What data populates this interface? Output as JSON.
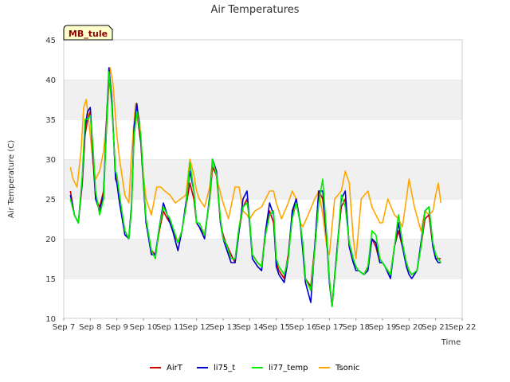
{
  "chart_data": {
    "type": "line",
    "title": "Air Temperatures",
    "xlabel": "Time",
    "ylabel": "Air Temperature (C)",
    "tag": "MB_tule",
    "ylim": [
      10,
      45
    ],
    "xlim": [
      "Sep 7",
      "Sep 22"
    ],
    "yticks": [
      10,
      15,
      20,
      25,
      30,
      35,
      40,
      45
    ],
    "xticks": [
      "Sep 7",
      "Sep 8",
      "Sep 9",
      "Sep 10",
      "Sep 11",
      "Sep 12",
      "Sep 13",
      "Sep 14",
      "Sep 15",
      "Sep 16",
      "Sep 17",
      "Sep 18",
      "Sep 19",
      "Sep 20",
      "Sep 21",
      "Sep 22"
    ],
    "grid": "horizontal bands",
    "legend_position": "bottom",
    "colors": {
      "AirT": "#cc0000",
      "li75_t": "#0000cc",
      "li77_temp": "#00ee00",
      "Tsonic": "#ffa500",
      "band": "#f0f0f0",
      "tag_bg": "#ffffcc"
    },
    "x_unit": "days since Sep 7 00:00",
    "series": [
      {
        "name": "AirT",
        "x": [
          0.25,
          0.4,
          0.55,
          0.7,
          0.8,
          0.9,
          1.0,
          1.1,
          1.2,
          1.35,
          1.5,
          1.6,
          1.7,
          1.8,
          1.95,
          2.0,
          2.1,
          2.3,
          2.45,
          2.55,
          2.65,
          2.75,
          2.9,
          3.0,
          3.1,
          3.3,
          3.45,
          3.6,
          3.75,
          3.9,
          4.0,
          4.1,
          4.3,
          4.45,
          4.6,
          4.75,
          4.9,
          5.0,
          5.1,
          5.3,
          5.5,
          5.6,
          5.75,
          5.9,
          6.0,
          6.1,
          6.3,
          6.45,
          6.6,
          6.75,
          6.9,
          7.0,
          7.1,
          7.3,
          7.45,
          7.6,
          7.75,
          7.9,
          8.0,
          8.1,
          8.3,
          8.45,
          8.6,
          8.75,
          8.9,
          9.0,
          9.1,
          9.3,
          9.45,
          9.6,
          9.75,
          9.9,
          10.0,
          10.1,
          10.3,
          10.45,
          10.6,
          10.75,
          10.9,
          11.0,
          11.1,
          11.3,
          11.45,
          11.6,
          11.75,
          11.9,
          12.0,
          12.1,
          12.3,
          12.45,
          12.6,
          12.75,
          12.9,
          13.0,
          13.1,
          13.3,
          13.45,
          13.6,
          13.75,
          13.9,
          14.0,
          14.1,
          14.2
        ],
        "y": [
          26,
          23,
          22,
          27,
          33,
          35,
          36,
          30,
          25,
          24,
          26,
          33,
          40,
          38,
          28,
          27,
          25,
          21,
          20,
          24,
          33,
          36,
          32,
          27,
          22,
          18.5,
          18,
          21,
          23.5,
          22.5,
          22,
          21,
          19.5,
          21,
          24,
          27,
          25,
          22,
          21.5,
          20.5,
          25,
          29,
          28,
          22,
          20.5,
          19.5,
          18,
          17,
          21,
          24,
          25,
          22,
          18,
          17,
          16.5,
          21,
          23.5,
          22,
          17,
          16,
          15,
          18,
          23,
          25,
          22,
          19,
          15,
          14,
          19,
          26,
          25,
          20,
          15,
          11.5,
          19,
          24,
          25,
          19,
          17,
          16.5,
          16,
          15.5,
          16.5,
          20,
          19,
          17,
          17,
          16.5,
          15.5,
          19,
          21,
          19,
          17,
          16,
          15.5,
          16,
          19,
          22.5,
          23,
          19,
          17.5,
          17.5,
          17.5
        ]
      },
      {
        "name": "li75_t",
        "x": [
          0.25,
          0.4,
          0.55,
          0.7,
          0.8,
          0.9,
          1.0,
          1.1,
          1.2,
          1.35,
          1.5,
          1.6,
          1.7,
          1.8,
          1.95,
          2.0,
          2.1,
          2.3,
          2.45,
          2.55,
          2.65,
          2.75,
          2.9,
          3.0,
          3.1,
          3.3,
          3.45,
          3.6,
          3.75,
          3.9,
          4.0,
          4.1,
          4.3,
          4.45,
          4.6,
          4.75,
          4.9,
          5.0,
          5.1,
          5.3,
          5.5,
          5.6,
          5.75,
          5.9,
          6.0,
          6.1,
          6.3,
          6.45,
          6.6,
          6.75,
          6.9,
          7.0,
          7.1,
          7.3,
          7.45,
          7.6,
          7.75,
          7.9,
          8.0,
          8.1,
          8.3,
          8.45,
          8.6,
          8.75,
          8.9,
          9.0,
          9.1,
          9.3,
          9.45,
          9.6,
          9.75,
          9.9,
          10.0,
          10.1,
          10.3,
          10.45,
          10.6,
          10.75,
          10.9,
          11.0,
          11.1,
          11.3,
          11.45,
          11.6,
          11.75,
          11.9,
          12.0,
          12.1,
          12.3,
          12.45,
          12.6,
          12.75,
          12.9,
          13.0,
          13.1,
          13.3,
          13.45,
          13.6,
          13.75,
          13.9,
          14.0,
          14.1,
          14.2
        ],
        "y": [
          25.5,
          23,
          22,
          27.5,
          34,
          36,
          36.5,
          31,
          25,
          23.5,
          25.5,
          34,
          41.5,
          38,
          27.5,
          27,
          24.5,
          20.5,
          20,
          24,
          34,
          37,
          32.5,
          27,
          22,
          18,
          18,
          21.5,
          24.5,
          23,
          22,
          21,
          18.5,
          21,
          24.5,
          28.5,
          26,
          22,
          21.5,
          20,
          25.5,
          30,
          28.5,
          22,
          20,
          19,
          17,
          17,
          21,
          25,
          26,
          22,
          17.5,
          16.5,
          16,
          21,
          24.5,
          23,
          16.5,
          15.5,
          14.5,
          17.5,
          23.5,
          25,
          22,
          18.5,
          14.5,
          12,
          19,
          26,
          26,
          20,
          14.5,
          11.5,
          19,
          25,
          26,
          19,
          17,
          16,
          16,
          15.5,
          16,
          20,
          19.5,
          17,
          17,
          16.5,
          15,
          19,
          22,
          19,
          16.5,
          15.5,
          15,
          16,
          19.5,
          23.5,
          24,
          19,
          17.5,
          17,
          17
        ]
      },
      {
        "name": "li77_temp",
        "x": [
          0.25,
          0.4,
          0.55,
          0.7,
          0.8,
          0.9,
          1.0,
          1.1,
          1.2,
          1.35,
          1.5,
          1.6,
          1.7,
          1.8,
          1.95,
          2.0,
          2.1,
          2.3,
          2.45,
          2.55,
          2.65,
          2.75,
          2.9,
          3.0,
          3.1,
          3.3,
          3.45,
          3.6,
          3.75,
          3.9,
          4.0,
          4.1,
          4.3,
          4.45,
          4.6,
          4.75,
          4.9,
          5.0,
          5.1,
          5.3,
          5.5,
          5.6,
          5.75,
          5.9,
          6.0,
          6.1,
          6.3,
          6.45,
          6.6,
          6.75,
          6.9,
          7.0,
          7.1,
          7.3,
          7.45,
          7.6,
          7.75,
          7.9,
          8.0,
          8.1,
          8.3,
          8.45,
          8.6,
          8.75,
          8.9,
          9.0,
          9.1,
          9.3,
          9.45,
          9.6,
          9.75,
          9.9,
          10.0,
          10.1,
          10.3,
          10.45,
          10.6,
          10.75,
          10.9,
          11.0,
          11.1,
          11.3,
          11.45,
          11.6,
          11.75,
          11.9,
          12.0,
          12.1,
          12.3,
          12.45,
          12.6,
          12.75,
          12.9,
          13.0,
          13.1,
          13.3,
          13.45,
          13.6,
          13.75,
          13.9,
          14.0,
          14.1,
          14.2
        ],
        "y": [
          25,
          23,
          22,
          28,
          35,
          35,
          35.5,
          31.5,
          26,
          23,
          25,
          33,
          41,
          37,
          28.5,
          28,
          25.5,
          21,
          20,
          23.5,
          33,
          36,
          33,
          27.5,
          22.5,
          18.5,
          17.5,
          21.5,
          24,
          23,
          22.5,
          21.5,
          19.5,
          21,
          24,
          29.5,
          26,
          22,
          22,
          20.5,
          25,
          30,
          28,
          22.5,
          20,
          19.5,
          17.5,
          17.5,
          21.5,
          24,
          24.5,
          22.5,
          18,
          17,
          16.5,
          20.5,
          23,
          23.5,
          17.5,
          16.5,
          15.5,
          17.5,
          22.5,
          24.5,
          22,
          19.5,
          15,
          13.5,
          18.5,
          24.5,
          27.5,
          20.5,
          15,
          11.5,
          18.5,
          25.5,
          24,
          19.5,
          17.5,
          16.5,
          16,
          15.5,
          16.5,
          21,
          20.5,
          17.5,
          17,
          16.5,
          15.5,
          19,
          23,
          19.5,
          17,
          16,
          15.5,
          16,
          19,
          23.5,
          24,
          19.5,
          18,
          17.5,
          17
        ]
      },
      {
        "name": "Tsonic",
        "x": [
          0.25,
          0.35,
          0.5,
          0.65,
          0.75,
          0.85,
          1.0,
          1.1,
          1.2,
          1.35,
          1.5,
          1.6,
          1.75,
          1.85,
          2.0,
          2.1,
          2.3,
          2.45,
          2.55,
          2.7,
          2.85,
          3.0,
          3.1,
          3.3,
          3.5,
          3.65,
          3.8,
          4.0,
          4.2,
          4.4,
          4.6,
          4.75,
          4.9,
          5.0,
          5.1,
          5.3,
          5.5,
          5.6,
          5.8,
          6.0,
          6.2,
          6.45,
          6.6,
          6.75,
          6.9,
          7.0,
          7.2,
          7.45,
          7.6,
          7.75,
          7.9,
          8.0,
          8.2,
          8.45,
          8.6,
          8.75,
          8.9,
          9.0,
          9.2,
          9.45,
          9.6,
          9.75,
          9.9,
          10.0,
          10.2,
          10.45,
          10.6,
          10.75,
          10.9,
          11.0,
          11.2,
          11.45,
          11.6,
          11.75,
          11.9,
          12.0,
          12.2,
          12.45,
          12.6,
          12.75,
          12.9,
          13.0,
          13.2,
          13.45,
          13.6,
          13.75,
          13.9,
          14.0,
          14.1,
          14.2
        ],
        "y": [
          29,
          27.5,
          26.5,
          31,
          36.5,
          37.5,
          33,
          29.5,
          27.5,
          28.5,
          31,
          34.5,
          41.5,
          39.5,
          33,
          30,
          25.5,
          24.5,
          30.5,
          37,
          35,
          28,
          25,
          23,
          26.5,
          26.5,
          26,
          25.5,
          24.5,
          25,
          25.5,
          30,
          28,
          26,
          25,
          24,
          26.5,
          30,
          27,
          24.5,
          22.5,
          26.5,
          26.5,
          23.5,
          23,
          22.5,
          23.5,
          24,
          25,
          26,
          26,
          24.5,
          22.5,
          24.5,
          26,
          25,
          22,
          21.5,
          23,
          25,
          26,
          23,
          19,
          18,
          25,
          26,
          28.5,
          27,
          20,
          17.5,
          25,
          26,
          24,
          23,
          22,
          22,
          25,
          23,
          22.5,
          21.5,
          25,
          27.5,
          24,
          21,
          23.5,
          23,
          23.5,
          25.5,
          27,
          24.5
        ]
      }
    ]
  }
}
